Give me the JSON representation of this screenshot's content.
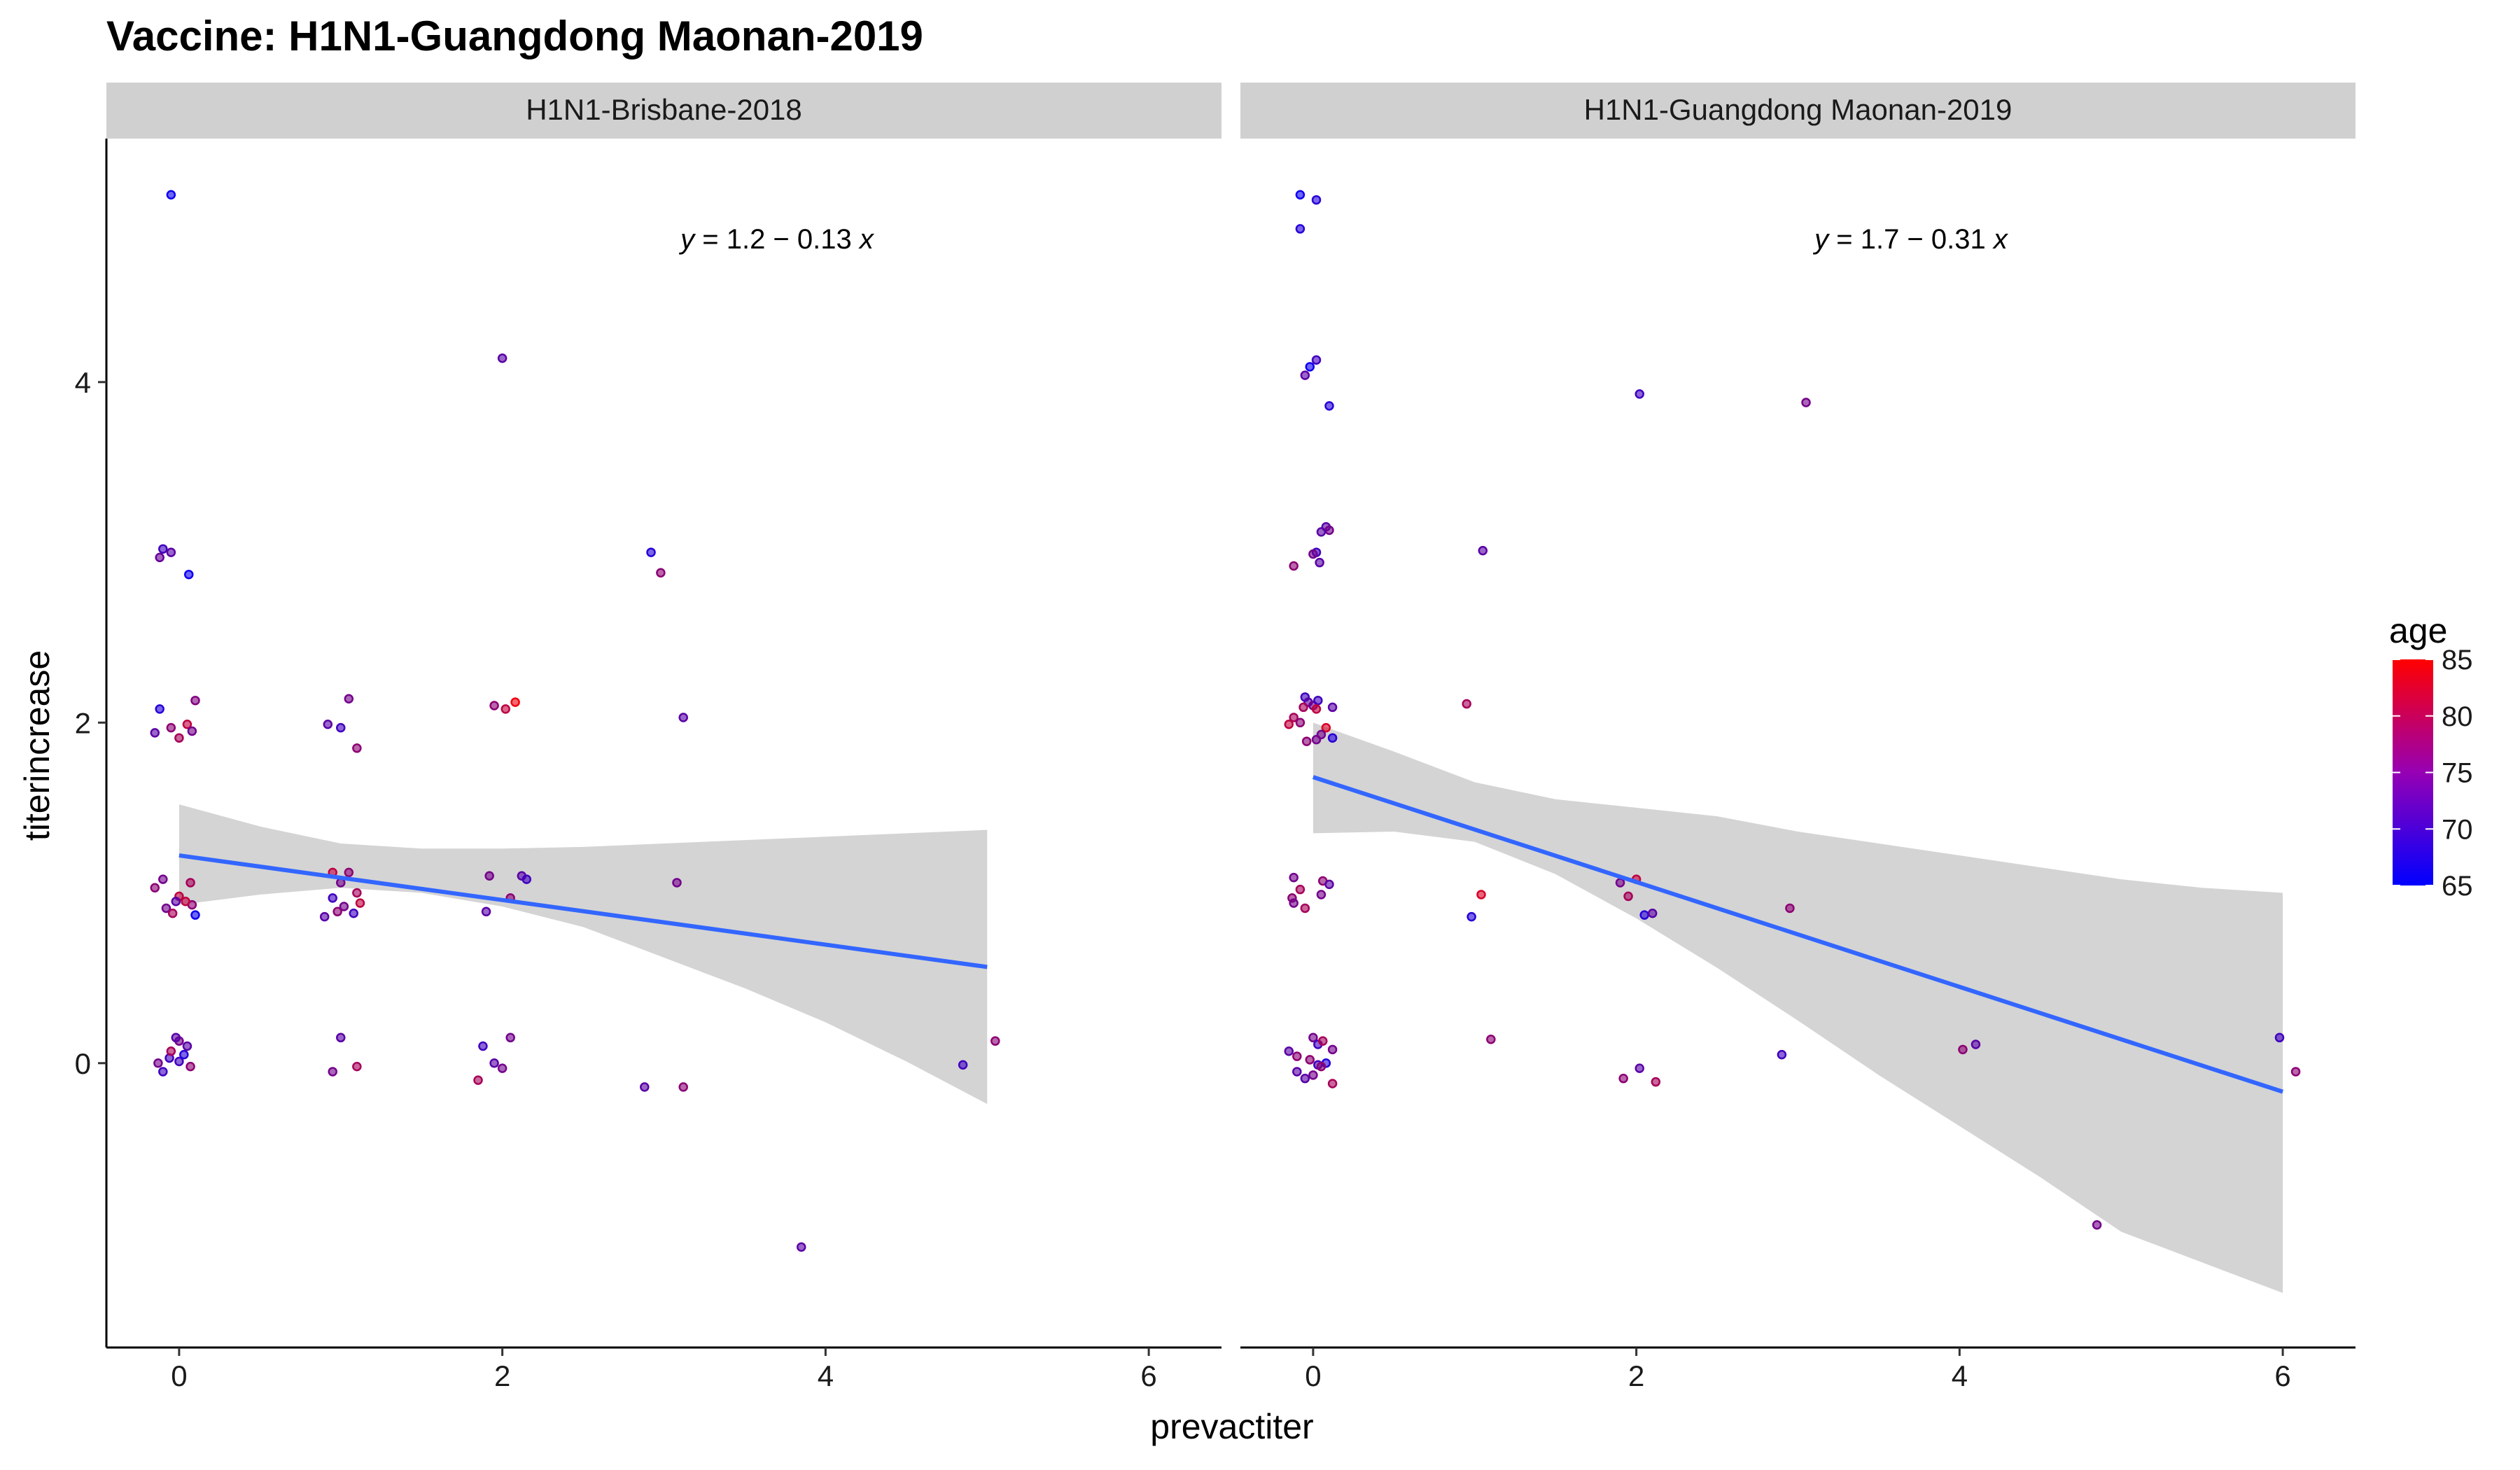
{
  "chart_data": {
    "type": "scatter",
    "title": "Vaccine: H1N1-Guangdong Maonan-2019",
    "xlabel": "prevactiter",
    "ylabel": "titerincrease",
    "xlim": [
      -0.45,
      6.45
    ],
    "ylim": [
      -1.67,
      5.43
    ],
    "x_ticks": [
      0,
      2,
      4,
      6
    ],
    "y_ticks": [
      0,
      2,
      4
    ],
    "grid": false,
    "colors": {
      "low": "#0000ff",
      "high": "#ff0000",
      "fit_line": "#3366ff",
      "ribbon": "#cccccc",
      "strip": "#d0d0d0"
    },
    "legend": {
      "title": "age",
      "position": "right",
      "min": 65,
      "max": 85,
      "ticks": [
        65,
        70,
        75,
        80,
        85
      ]
    },
    "panels": [
      {
        "strip": "H1N1-Brisbane-2018",
        "equation": {
          "prefix": "y",
          "body": " = 1.2 − 0.13 ",
          "suffix": "x"
        },
        "fit": {
          "intercept": 1.22,
          "slope": -0.131,
          "xrange": [
            0,
            5
          ]
        },
        "ribbon": [
          [
            0,
            0.93,
            1.52
          ],
          [
            0.5,
            0.99,
            1.39
          ],
          [
            1,
            1.03,
            1.29
          ],
          [
            1.5,
            1.0,
            1.26
          ],
          [
            2,
            0.92,
            1.26
          ],
          [
            2.5,
            0.8,
            1.27
          ],
          [
            3,
            0.62,
            1.29
          ],
          [
            3.5,
            0.44,
            1.31
          ],
          [
            4,
            0.24,
            1.33
          ],
          [
            4.5,
            0.01,
            1.35
          ],
          [
            5,
            -0.24,
            1.37
          ]
        ],
        "points": [
          [
            -0.05,
            5.1,
            66
          ],
          [
            -0.1,
            3.02,
            70
          ],
          [
            -0.05,
            3.0,
            72
          ],
          [
            -0.12,
            2.97,
            73
          ],
          [
            0.06,
            2.87,
            66
          ],
          [
            -0.12,
            2.08,
            68
          ],
          [
            0.1,
            2.13,
            75
          ],
          [
            -0.15,
            1.94,
            72
          ],
          [
            -0.05,
            1.97,
            76
          ],
          [
            0.05,
            1.99,
            80
          ],
          [
            0.0,
            1.91,
            78
          ],
          [
            0.08,
            1.95,
            74
          ],
          [
            -0.1,
            1.08,
            74
          ],
          [
            -0.15,
            1.03,
            76
          ],
          [
            0.07,
            1.06,
            78
          ],
          [
            0.0,
            0.98,
            80
          ],
          [
            -0.02,
            0.95,
            72
          ],
          [
            0.08,
            0.93,
            76
          ],
          [
            0.1,
            0.87,
            66
          ],
          [
            -0.08,
            0.91,
            74
          ],
          [
            -0.04,
            0.88,
            78
          ],
          [
            0.04,
            0.95,
            80
          ],
          [
            -0.06,
            0.03,
            70
          ],
          [
            0.0,
            0.13,
            74
          ],
          [
            0.05,
            0.1,
            72
          ],
          [
            -0.1,
            -0.05,
            70
          ],
          [
            -0.05,
            0.07,
            78
          ],
          [
            0.0,
            0.01,
            70
          ],
          [
            0.03,
            0.05,
            68
          ],
          [
            -0.13,
            0.0,
            74
          ],
          [
            0.07,
            -0.02,
            76
          ],
          [
            -0.02,
            0.15,
            72
          ],
          [
            0.92,
            1.99,
            72
          ],
          [
            1.0,
            1.97,
            70
          ],
          [
            1.05,
            2.14,
            74
          ],
          [
            1.1,
            1.85,
            76
          ],
          [
            0.95,
            1.12,
            80
          ],
          [
            1.05,
            1.12,
            76
          ],
          [
            1.0,
            1.06,
            74
          ],
          [
            1.1,
            1.0,
            78
          ],
          [
            0.95,
            0.97,
            70
          ],
          [
            1.02,
            0.92,
            74
          ],
          [
            1.12,
            0.94,
            80
          ],
          [
            0.9,
            0.86,
            72
          ],
          [
            0.98,
            0.89,
            76
          ],
          [
            1.08,
            0.88,
            70
          ],
          [
            0.95,
            -0.05,
            74
          ],
          [
            1.0,
            0.15,
            72
          ],
          [
            1.1,
            -0.02,
            78
          ],
          [
            2.0,
            4.14,
            72
          ],
          [
            1.95,
            2.1,
            76
          ],
          [
            2.08,
            2.12,
            84
          ],
          [
            2.02,
            2.08,
            80
          ],
          [
            1.92,
            1.1,
            74
          ],
          [
            2.12,
            1.1,
            72
          ],
          [
            2.15,
            1.08,
            70
          ],
          [
            1.9,
            0.89,
            72
          ],
          [
            2.05,
            0.97,
            76
          ],
          [
            1.85,
            -0.1,
            78
          ],
          [
            2.05,
            0.15,
            74
          ],
          [
            1.88,
            0.1,
            70
          ],
          [
            1.95,
            0.0,
            72
          ],
          [
            2.0,
            -0.03,
            74
          ],
          [
            2.92,
            3.0,
            68
          ],
          [
            2.98,
            2.88,
            76
          ],
          [
            3.12,
            2.03,
            72
          ],
          [
            3.08,
            1.06,
            74
          ],
          [
            2.88,
            -0.14,
            72
          ],
          [
            3.12,
            -0.14,
            76
          ],
          [
            3.85,
            -1.08,
            72
          ],
          [
            4.85,
            -0.01,
            70
          ],
          [
            5.05,
            0.13,
            76
          ]
        ]
      },
      {
        "strip": "H1N1-Guangdong Maonan-2019",
        "equation": {
          "prefix": "y",
          "body": " = 1.7 − 0.31 ",
          "suffix": "x"
        },
        "fit": {
          "intercept": 1.68,
          "slope": -0.308,
          "xrange": [
            0,
            6
          ]
        },
        "ribbon": [
          [
            0,
            1.35,
            2.0
          ],
          [
            0.5,
            1.36,
            1.83
          ],
          [
            1,
            1.3,
            1.65
          ],
          [
            1.5,
            1.11,
            1.55
          ],
          [
            2,
            0.85,
            1.5
          ],
          [
            2.5,
            0.56,
            1.45
          ],
          [
            3,
            0.25,
            1.36
          ],
          [
            3.5,
            -0.07,
            1.29
          ],
          [
            4,
            -0.37,
            1.22
          ],
          [
            4.5,
            -0.67,
            1.15
          ],
          [
            5,
            -0.99,
            1.08
          ],
          [
            5.5,
            -1.17,
            1.03
          ],
          [
            6,
            -1.35,
            1.0
          ]
        ],
        "points": [
          [
            -0.08,
            5.1,
            66
          ],
          [
            0.02,
            5.07,
            68
          ],
          [
            -0.08,
            4.9,
            68
          ],
          [
            0.02,
            4.13,
            70
          ],
          [
            -0.02,
            4.09,
            66
          ],
          [
            -0.05,
            4.04,
            72
          ],
          [
            0.1,
            3.86,
            68
          ],
          [
            0.08,
            3.15,
            72
          ],
          [
            0.1,
            3.13,
            74
          ],
          [
            0.05,
            3.12,
            72
          ],
          [
            0.02,
            3.0,
            70
          ],
          [
            0.0,
            2.99,
            74
          ],
          [
            -0.12,
            2.92,
            76
          ],
          [
            0.04,
            2.94,
            72
          ],
          [
            -0.05,
            2.15,
            70
          ],
          [
            -0.03,
            2.12,
            72
          ],
          [
            0.0,
            2.1,
            74
          ],
          [
            0.03,
            2.13,
            70
          ],
          [
            -0.06,
            2.09,
            78
          ],
          [
            0.02,
            2.08,
            80
          ],
          [
            0.12,
            2.09,
            72
          ],
          [
            -0.12,
            2.03,
            78
          ],
          [
            -0.08,
            2.0,
            76
          ],
          [
            -0.15,
            1.99,
            80
          ],
          [
            0.08,
            1.97,
            82
          ],
          [
            0.05,
            1.93,
            74
          ],
          [
            -0.04,
            1.89,
            76
          ],
          [
            0.02,
            1.9,
            74
          ],
          [
            0.12,
            1.91,
            68
          ],
          [
            -0.12,
            1.09,
            74
          ],
          [
            0.06,
            1.07,
            76
          ],
          [
            0.1,
            1.05,
            72
          ],
          [
            -0.08,
            1.02,
            78
          ],
          [
            0.05,
            0.99,
            74
          ],
          [
            -0.13,
            0.97,
            76
          ],
          [
            -0.12,
            0.94,
            74
          ],
          [
            -0.05,
            0.91,
            78
          ],
          [
            -0.15,
            0.07,
            72
          ],
          [
            -0.1,
            0.04,
            76
          ],
          [
            0.0,
            0.15,
            74
          ],
          [
            0.03,
            0.11,
            70
          ],
          [
            0.06,
            0.13,
            78
          ],
          [
            0.12,
            0.08,
            74
          ],
          [
            -0.02,
            0.02,
            76
          ],
          [
            0.03,
            -0.01,
            70
          ],
          [
            0.08,
            0.0,
            68
          ],
          [
            -0.1,
            -0.05,
            72
          ],
          [
            0.0,
            -0.07,
            74
          ],
          [
            0.12,
            -0.12,
            78
          ],
          [
            0.05,
            -0.02,
            76
          ],
          [
            -0.05,
            -0.09,
            72
          ],
          [
            0.95,
            2.11,
            78
          ],
          [
            1.05,
            3.01,
            72
          ],
          [
            0.98,
            0.86,
            68
          ],
          [
            1.04,
            0.99,
            82
          ],
          [
            1.1,
            0.14,
            76
          ],
          [
            2.02,
            3.93,
            70
          ],
          [
            1.9,
            1.06,
            74
          ],
          [
            2.0,
            1.08,
            80
          ],
          [
            1.95,
            0.98,
            78
          ],
          [
            2.05,
            0.87,
            68
          ],
          [
            2.1,
            0.88,
            72
          ],
          [
            1.92,
            -0.09,
            76
          ],
          [
            2.02,
            -0.03,
            72
          ],
          [
            2.12,
            -0.11,
            78
          ],
          [
            3.05,
            3.88,
            74
          ],
          [
            2.95,
            0.91,
            76
          ],
          [
            2.9,
            0.05,
            70
          ],
          [
            4.02,
            0.08,
            76
          ],
          [
            4.1,
            0.11,
            72
          ],
          [
            4.85,
            -0.95,
            74
          ],
          [
            5.98,
            0.15,
            70
          ],
          [
            6.08,
            -0.05,
            76
          ]
        ]
      }
    ]
  }
}
